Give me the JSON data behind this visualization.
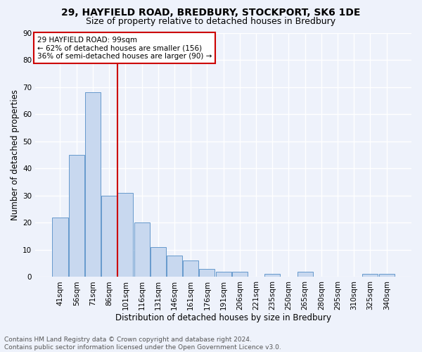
{
  "title1": "29, HAYFIELD ROAD, BREDBURY, STOCKPORT, SK6 1DE",
  "title2": "Size of property relative to detached houses in Bredbury",
  "xlabel": "Distribution of detached houses by size in Bredbury",
  "ylabel": "Number of detached properties",
  "footnote": "Contains HM Land Registry data © Crown copyright and database right 2024.\nContains public sector information licensed under the Open Government Licence v3.0.",
  "bar_labels": [
    "41sqm",
    "56sqm",
    "71sqm",
    "86sqm",
    "101sqm",
    "116sqm",
    "131sqm",
    "146sqm",
    "161sqm",
    "176sqm",
    "191sqm",
    "206sqm",
    "221sqm",
    "235sqm",
    "250sqm",
    "265sqm",
    "280sqm",
    "295sqm",
    "310sqm",
    "325sqm",
    "340sqm"
  ],
  "bar_values": [
    22,
    45,
    68,
    30,
    31,
    20,
    11,
    8,
    6,
    3,
    2,
    2,
    0,
    1,
    0,
    2,
    0,
    0,
    0,
    1,
    1
  ],
  "bar_color": "#c8d8ef",
  "bar_edge_color": "#6699cc",
  "highlight_index": 4,
  "highlight_color": "#cc0000",
  "annotation_title": "29 HAYFIELD ROAD: 99sqm",
  "annotation_line1": "← 62% of detached houses are smaller (156)",
  "annotation_line2": "36% of semi-detached houses are larger (90) →",
  "annotation_box_color": "#cc0000",
  "ylim": [
    0,
    90
  ],
  "yticks": [
    0,
    10,
    20,
    30,
    40,
    50,
    60,
    70,
    80,
    90
  ],
  "background_color": "#eef2fb",
  "grid_color": "#ffffff",
  "title1_fontsize": 10,
  "title2_fontsize": 9,
  "axis_label_fontsize": 8.5,
  "tick_fontsize": 7.5,
  "annotation_fontsize": 7.5,
  "footnote_fontsize": 6.5
}
